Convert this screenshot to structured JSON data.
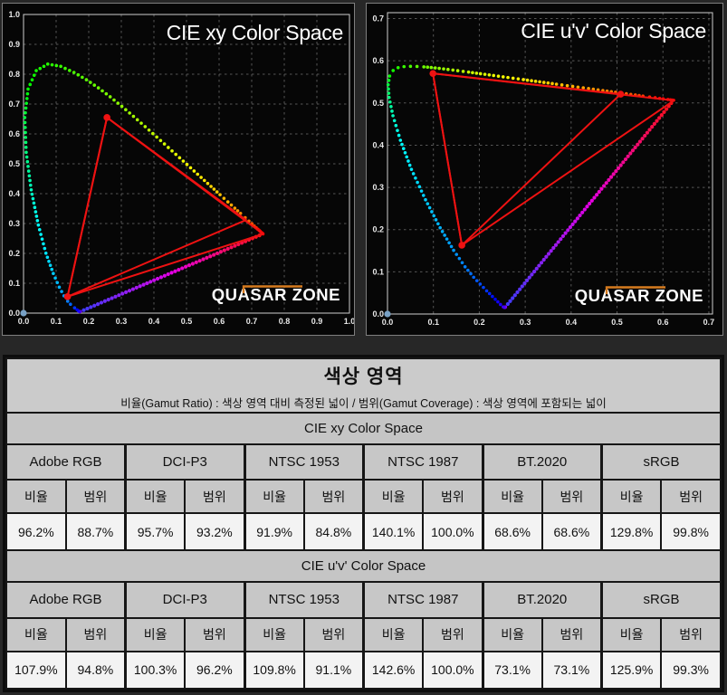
{
  "watermark": "QUASAR ZONE",
  "colors": {
    "triangle": "#ee1212",
    "marker": "#ee1212",
    "origin_marker": "#77a0c4",
    "watermark_text": "#fdfdfd",
    "watermark_accent": "#d67b1f",
    "grid": "#565656",
    "frame": "#cfcfcf",
    "tick_label": "#e8e8e8",
    "panel_bg": "#060606",
    "page_bg": "#272727",
    "table_title_bg": "#cbcbcb",
    "table_header_bg": "#c7c7c7",
    "table_value_bg": "#f3f3f3"
  },
  "chart_data": {
    "type": "scatter",
    "description": "CIE chromaticity diagrams with spectral locus dots and measured/reference gamut triangles",
    "spectral_locus_xy": [
      [
        380,
        0.1741,
        0.005
      ],
      [
        390,
        0.1738,
        0.0049
      ],
      [
        400,
        0.1733,
        0.0048
      ],
      [
        410,
        0.1726,
        0.0048
      ],
      [
        420,
        0.1714,
        0.0051
      ],
      [
        430,
        0.1689,
        0.0069
      ],
      [
        440,
        0.1644,
        0.0109
      ],
      [
        450,
        0.1566,
        0.0177
      ],
      [
        460,
        0.144,
        0.0297
      ],
      [
        465,
        0.1355,
        0.0399
      ],
      [
        470,
        0.1241,
        0.0578
      ],
      [
        475,
        0.1096,
        0.0868
      ],
      [
        480,
        0.0913,
        0.1327
      ],
      [
        485,
        0.0687,
        0.2007
      ],
      [
        490,
        0.0454,
        0.295
      ],
      [
        495,
        0.0235,
        0.4127
      ],
      [
        500,
        0.0082,
        0.5384
      ],
      [
        505,
        0.0039,
        0.6548
      ],
      [
        510,
        0.0139,
        0.7502
      ],
      [
        515,
        0.0389,
        0.812
      ],
      [
        520,
        0.0743,
        0.8338
      ],
      [
        525,
        0.1142,
        0.8262
      ],
      [
        530,
        0.1547,
        0.8059
      ],
      [
        535,
        0.1929,
        0.7816
      ],
      [
        540,
        0.2296,
        0.7543
      ],
      [
        545,
        0.2658,
        0.7243
      ],
      [
        550,
        0.3016,
        0.6923
      ],
      [
        555,
        0.3373,
        0.6589
      ],
      [
        560,
        0.3731,
        0.6245
      ],
      [
        565,
        0.4087,
        0.5896
      ],
      [
        570,
        0.4441,
        0.5547
      ],
      [
        575,
        0.4788,
        0.5202
      ],
      [
        580,
        0.5125,
        0.4866
      ],
      [
        585,
        0.5448,
        0.4544
      ],
      [
        590,
        0.5752,
        0.4242
      ],
      [
        595,
        0.6029,
        0.3965
      ],
      [
        600,
        0.627,
        0.3725
      ],
      [
        605,
        0.6482,
        0.3514
      ],
      [
        610,
        0.6658,
        0.334
      ],
      [
        615,
        0.6801,
        0.3197
      ],
      [
        620,
        0.6915,
        0.3083
      ],
      [
        625,
        0.7006,
        0.2993
      ],
      [
        630,
        0.7079,
        0.292
      ],
      [
        635,
        0.714,
        0.2859
      ],
      [
        640,
        0.719,
        0.2809
      ],
      [
        645,
        0.723,
        0.277
      ],
      [
        650,
        0.726,
        0.274
      ],
      [
        660,
        0.73,
        0.27
      ],
      [
        670,
        0.732,
        0.268
      ],
      [
        680,
        0.7334,
        0.2666
      ],
      [
        700,
        0.7347,
        0.2653
      ]
    ],
    "charts": [
      {
        "title": "CIE xy Color Space",
        "space": "xy",
        "xlim": [
          0.0,
          1.0
        ],
        "ylim": [
          0.0,
          1.0
        ],
        "x_ticks": [
          "0.0",
          "0.1",
          "0.2",
          "0.3",
          "0.4",
          "0.5",
          "0.6",
          "0.7",
          "0.8",
          "0.9",
          "1.0"
        ],
        "y_ticks": [
          "0.0",
          "0.1",
          "0.2",
          "0.3",
          "0.4",
          "0.5",
          "0.6",
          "0.7",
          "0.8",
          "0.9",
          "1.0"
        ],
        "grid": true,
        "gamut_triangles": {
          "green_vertex": [
            0.256,
            0.655
          ],
          "blue_vertex": [
            0.135,
            0.055
          ],
          "red_vertex_inner": [
            0.683,
            0.312
          ],
          "red_vertex_outer": [
            0.735,
            0.265
          ]
        },
        "vertex_markers": [
          [
            0.256,
            0.655
          ],
          [
            0.135,
            0.055
          ]
        ],
        "origin_marker": [
          0.0,
          0.0
        ]
      },
      {
        "title": "CIE u'v' Color Space",
        "space": "uv",
        "xlim": [
          0.0,
          0.7
        ],
        "ylim": [
          0.0,
          0.7
        ],
        "x_ticks": [
          "0.0",
          "0.1",
          "0.2",
          "0.3",
          "0.4",
          "0.5",
          "0.6",
          "0.7"
        ],
        "y_ticks": [
          "0.0",
          "0.1",
          "0.2",
          "0.3",
          "0.4",
          "0.5",
          "0.6",
          "0.7"
        ],
        "grid": true,
        "gamut_triangles": {
          "green_vertex": [
            0.099,
            0.57
          ],
          "blue_vertex": [
            0.162,
            0.163
          ],
          "red_vertex_inner": [
            0.508,
            0.521
          ],
          "red_vertex_outer": [
            0.624,
            0.506
          ]
        },
        "vertex_markers": [
          [
            0.099,
            0.57
          ],
          [
            0.162,
            0.163
          ],
          [
            0.508,
            0.521
          ]
        ],
        "origin_marker": [
          0.0,
          0.0
        ]
      }
    ]
  },
  "table": {
    "title": "색상 영역",
    "subtitle": "비율(Gamut Ratio) : 색상 영역 대비 측정된 넓이 / 범위(Gamut Coverage) : 색상 영역에 포함되는 넓이",
    "column_groups": [
      "Adobe RGB",
      "DCI-P3",
      "NTSC 1953",
      "NTSC 1987",
      "BT.2020",
      "sRGB"
    ],
    "metric_headers": [
      "비율",
      "범위"
    ],
    "sections": [
      {
        "label": "CIE xy Color Space",
        "values": [
          "96.2%",
          "88.7%",
          "95.7%",
          "93.2%",
          "91.9%",
          "84.8%",
          "140.1%",
          "100.0%",
          "68.6%",
          "68.6%",
          "129.8%",
          "99.8%"
        ]
      },
      {
        "label": "CIE u'v' Color Space",
        "values": [
          "107.9%",
          "94.8%",
          "100.3%",
          "96.2%",
          "109.8%",
          "91.1%",
          "142.6%",
          "100.0%",
          "73.1%",
          "73.1%",
          "125.9%",
          "99.3%"
        ]
      }
    ]
  }
}
